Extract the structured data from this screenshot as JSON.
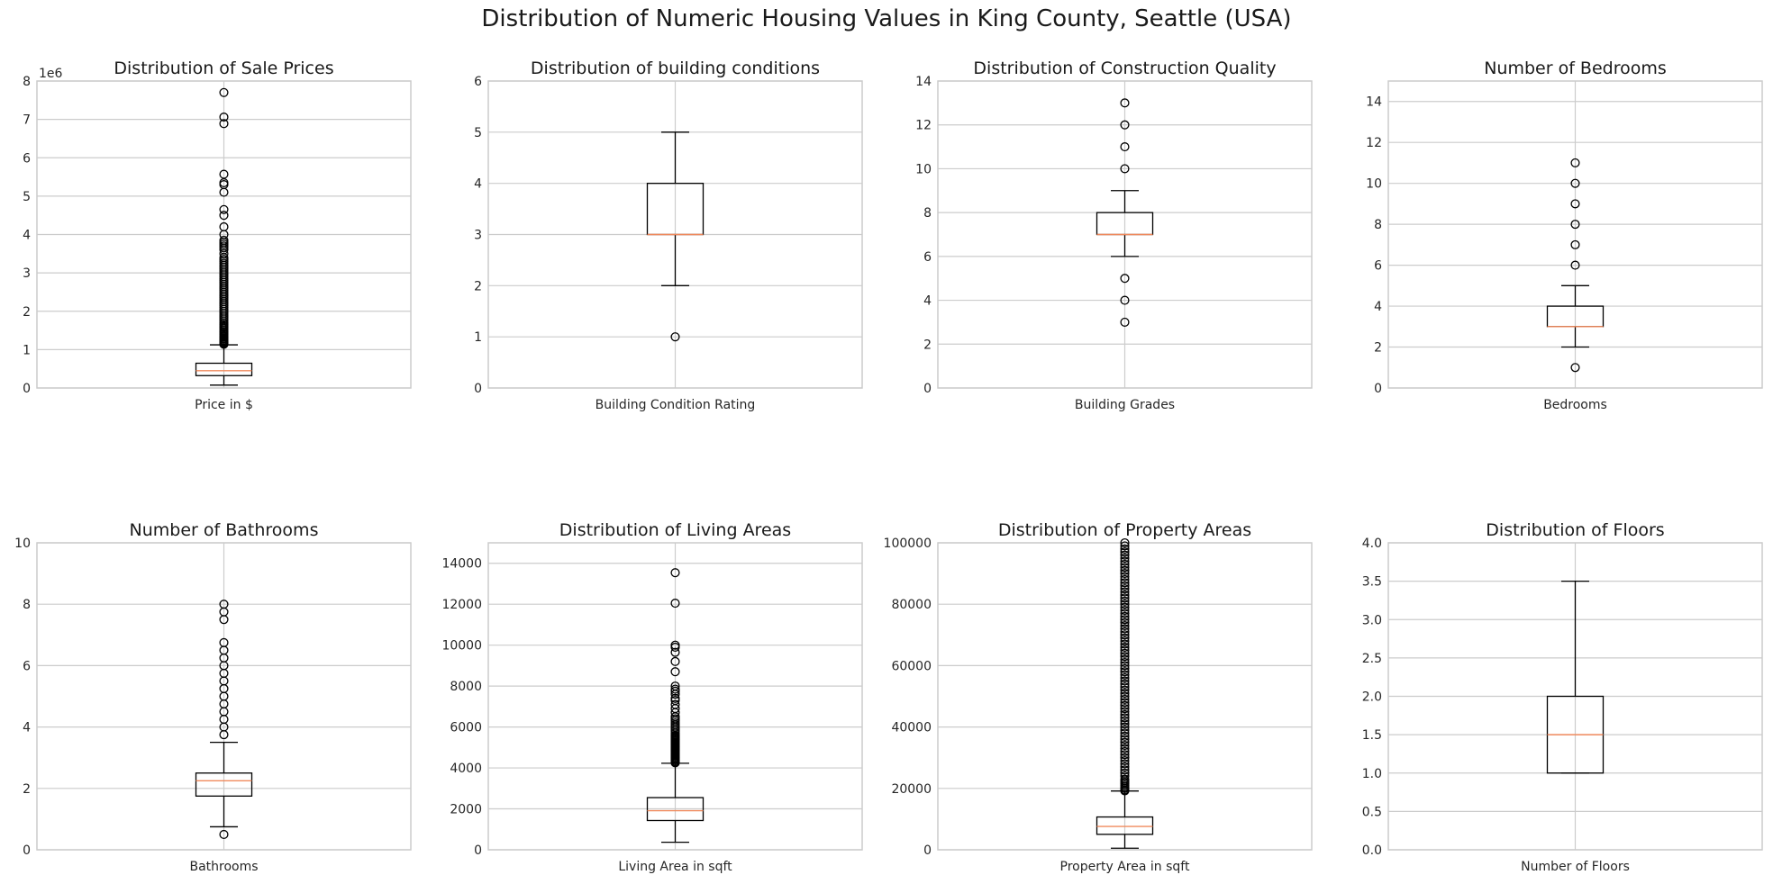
{
  "figure": {
    "title": "Distribution of Numeric Housing Values in King County, Seattle (USA)"
  },
  "colors": {
    "grid": "#cccccc",
    "frame": "#cccccc",
    "box": "#000000",
    "median": "#f08a5d",
    "background": "#ffffff"
  },
  "chart_data": [
    {
      "type": "boxplot",
      "title": "Distribution of Sale Prices",
      "xlabel": "Price in $",
      "ylabel": "",
      "ylim": [
        0,
        8000000
      ],
      "yticks": [
        0,
        1000000,
        2000000,
        3000000,
        4000000,
        5000000,
        6000000,
        7000000,
        8000000
      ],
      "ytick_labels": [
        "0",
        "1",
        "2",
        "3",
        "4",
        "5",
        "6",
        "7",
        "8"
      ],
      "offset_label": "1e6",
      "whisker_low": 75000,
      "q1": 322000,
      "median": 450000,
      "q3": 645000,
      "whisker_high": 1125000,
      "outliers": [
        1140000,
        1160000,
        1180000,
        1200000,
        1220000,
        1250000,
        1280000,
        1300000,
        1330000,
        1360000,
        1400000,
        1430000,
        1460000,
        1500000,
        1540000,
        1580000,
        1620000,
        1660000,
        1700000,
        1750000,
        1800000,
        1850000,
        1900000,
        1950000,
        2000000,
        2050000,
        2100000,
        2150000,
        2200000,
        2250000,
        2300000,
        2350000,
        2400000,
        2450000,
        2500000,
        2550000,
        2600000,
        2650000,
        2700000,
        2750000,
        2800000,
        2850000,
        2900000,
        2950000,
        3000000,
        3050000,
        3100000,
        3150000,
        3200000,
        3250000,
        3300000,
        3350000,
        3400000,
        3500000,
        3600000,
        3650000,
        3700000,
        3750000,
        3800000,
        3850000,
        4000000,
        4200000,
        4500000,
        4650000,
        5100000,
        5300000,
        5350000,
        5570000,
        6890000,
        7060000,
        7700000
      ]
    },
    {
      "type": "boxplot",
      "title": "Distribution of building conditions",
      "xlabel": "Building Condition Rating",
      "ylabel": "",
      "ylim": [
        0,
        6
      ],
      "yticks": [
        0,
        1,
        2,
        3,
        4,
        5,
        6
      ],
      "ytick_labels": [
        "0",
        "1",
        "2",
        "3",
        "4",
        "5",
        "6"
      ],
      "whisker_low": 2,
      "q1": 3,
      "median": 3,
      "q3": 4,
      "whisker_high": 5,
      "outliers": [
        1
      ]
    },
    {
      "type": "boxplot",
      "title": "Distribution of Construction Quality",
      "xlabel": "Building Grades",
      "ylabel": "",
      "ylim": [
        0,
        14
      ],
      "yticks": [
        0,
        2,
        4,
        6,
        8,
        10,
        12,
        14
      ],
      "ytick_labels": [
        "0",
        "2",
        "4",
        "6",
        "8",
        "10",
        "12",
        "14"
      ],
      "whisker_low": 6,
      "q1": 7,
      "median": 7,
      "q3": 8,
      "whisker_high": 9,
      "outliers": [
        3,
        4,
        5,
        10,
        11,
        12,
        13
      ]
    },
    {
      "type": "boxplot",
      "title": "Number of Bedrooms",
      "xlabel": "Bedrooms",
      "ylabel": "",
      "ylim": [
        0,
        15
      ],
      "yticks": [
        0,
        2,
        4,
        6,
        8,
        10,
        12,
        14
      ],
      "ytick_labels": [
        "0",
        "2",
        "4",
        "6",
        "8",
        "10",
        "12",
        "14"
      ],
      "whisker_low": 2,
      "q1": 3,
      "median": 3,
      "q3": 4,
      "whisker_high": 5,
      "outliers": [
        1,
        6,
        7,
        8,
        9,
        10,
        11
      ]
    },
    {
      "type": "boxplot",
      "title": "Number of Bathrooms",
      "xlabel": "Bathrooms",
      "ylabel": "",
      "ylim": [
        0,
        10
      ],
      "yticks": [
        0,
        2,
        4,
        6,
        8,
        10
      ],
      "ytick_labels": [
        "0",
        "2",
        "4",
        "6",
        "8",
        "10"
      ],
      "whisker_low": 0.75,
      "q1": 1.75,
      "median": 2.25,
      "q3": 2.5,
      "whisker_high": 3.5,
      "outliers": [
        0.5,
        3.75,
        4.0,
        4.25,
        4.5,
        4.75,
        5.0,
        5.25,
        5.5,
        5.75,
        6.0,
        6.25,
        6.5,
        6.75,
        7.5,
        7.75,
        8.0
      ]
    },
    {
      "type": "boxplot",
      "title": "Distribution of Living Areas",
      "xlabel": "Living Area in sqft",
      "ylabel": "",
      "ylim": [
        0,
        15000
      ],
      "yticks": [
        0,
        2000,
        4000,
        6000,
        8000,
        10000,
        12000,
        14000
      ],
      "ytick_labels": [
        "0",
        "2000",
        "4000",
        "6000",
        "8000",
        "10000",
        "12000",
        "14000"
      ],
      "whisker_low": 370,
      "q1": 1430,
      "median": 1910,
      "q3": 2550,
      "whisker_high": 4230,
      "outliers": [
        4250,
        4300,
        4350,
        4400,
        4450,
        4500,
        4550,
        4600,
        4650,
        4700,
        4750,
        4800,
        4850,
        4900,
        4950,
        5000,
        5050,
        5100,
        5150,
        5200,
        5250,
        5300,
        5350,
        5400,
        5450,
        5500,
        5550,
        5600,
        5700,
        5800,
        5900,
        6000,
        6100,
        6200,
        6300,
        6400,
        6500,
        6700,
        6900,
        7100,
        7300,
        7400,
        7600,
        7750,
        7850,
        8000,
        8700,
        9200,
        9650,
        9900,
        10000,
        12050,
        13540
      ]
    },
    {
      "type": "boxplot",
      "title": "Distribution of Property Areas",
      "xlabel": "Property Area in sqft",
      "ylabel": "",
      "ylim": [
        0,
        100000
      ],
      "yticks": [
        0,
        20000,
        40000,
        60000,
        80000,
        100000
      ],
      "ytick_labels": [
        "0",
        "20000",
        "40000",
        "60000",
        "80000",
        "100000"
      ],
      "whisker_low": 520,
      "q1": 5040,
      "median": 7620,
      "q3": 10690,
      "whisker_high": 19150,
      "outliers": [
        19200,
        19500,
        20000,
        20500,
        21000,
        21500,
        22000,
        22500,
        23000,
        24000,
        25000,
        26000,
        27000,
        28000,
        29000,
        30000,
        31000,
        32000,
        33000,
        34000,
        35000,
        36000,
        37000,
        38000,
        39000,
        40000,
        41000,
        42000,
        43000,
        44000,
        45000,
        46000,
        47000,
        48000,
        49000,
        50000,
        51000,
        52000,
        53000,
        54000,
        55000,
        56000,
        57000,
        58000,
        59000,
        60000,
        61000,
        62000,
        63000,
        64000,
        65000,
        66000,
        67000,
        68000,
        69000,
        70000,
        71000,
        72000,
        73000,
        74000,
        75000,
        76000,
        77000,
        78000,
        79000,
        80000,
        81000,
        82000,
        83000,
        84000,
        85000,
        86000,
        87000,
        88000,
        89000,
        90000,
        91000,
        92000,
        93000,
        94000,
        95000,
        96000,
        97000,
        98000,
        99000,
        100000
      ]
    },
    {
      "type": "boxplot",
      "title": "Distribution of Floors",
      "xlabel": "Number of Floors",
      "ylabel": "",
      "ylim": [
        0,
        4
      ],
      "yticks": [
        0,
        0.5,
        1,
        1.5,
        2,
        2.5,
        3,
        3.5,
        4
      ],
      "ytick_labels": [
        "0.0",
        "0.5",
        "1.0",
        "1.5",
        "2.0",
        "2.5",
        "3.0",
        "3.5",
        "4.0"
      ],
      "whisker_low": 1,
      "q1": 1,
      "median": 1.5,
      "q3": 2,
      "whisker_high": 3.5,
      "outliers": []
    }
  ]
}
